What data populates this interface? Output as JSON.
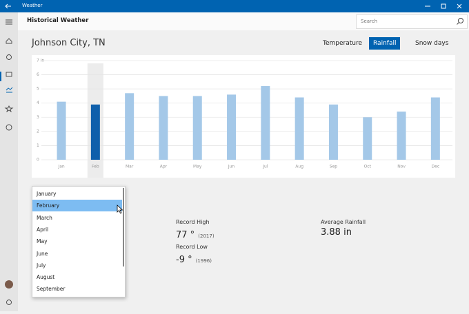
{
  "app": {
    "title": "Weather"
  },
  "header": {
    "title": "Historical Weather",
    "search_placeholder": "Search"
  },
  "location": "Johnson City, TN",
  "tabs": {
    "items": [
      "Temperature",
      "Rainfall",
      "Snow days"
    ],
    "selected": 1
  },
  "chart_data": {
    "type": "bar",
    "categories": [
      "Jan",
      "Feb",
      "Mar",
      "Apr",
      "May",
      "Jun",
      "Jul",
      "Aug",
      "Sep",
      "Oct",
      "Nov",
      "Dec"
    ],
    "values": [
      4.1,
      3.9,
      4.7,
      4.5,
      4.5,
      4.6,
      5.2,
      4.4,
      3.9,
      3.0,
      3.4,
      4.4
    ],
    "color": "#a4c8e8",
    "selected_color": "#0f5fab",
    "selected": 1,
    "ylim": [
      0,
      7
    ],
    "yticks": [
      0,
      1,
      2,
      3,
      4,
      5,
      6,
      {
        "value": 7,
        "label": "7 in"
      }
    ],
    "grid": true
  },
  "month_list": {
    "items": [
      "January",
      "February",
      "March",
      "April",
      "May",
      "June",
      "July",
      "August",
      "September"
    ],
    "selected": 1
  },
  "stats": {
    "record_high": {
      "label": "Record High",
      "value": "77 °",
      "year": "(2017)"
    },
    "record_low": {
      "label": "Record Low",
      "value": "-9 °",
      "year": "(1996)"
    },
    "average_rainfall": {
      "label": "Average Rainfall",
      "value": "3.88 in"
    }
  }
}
